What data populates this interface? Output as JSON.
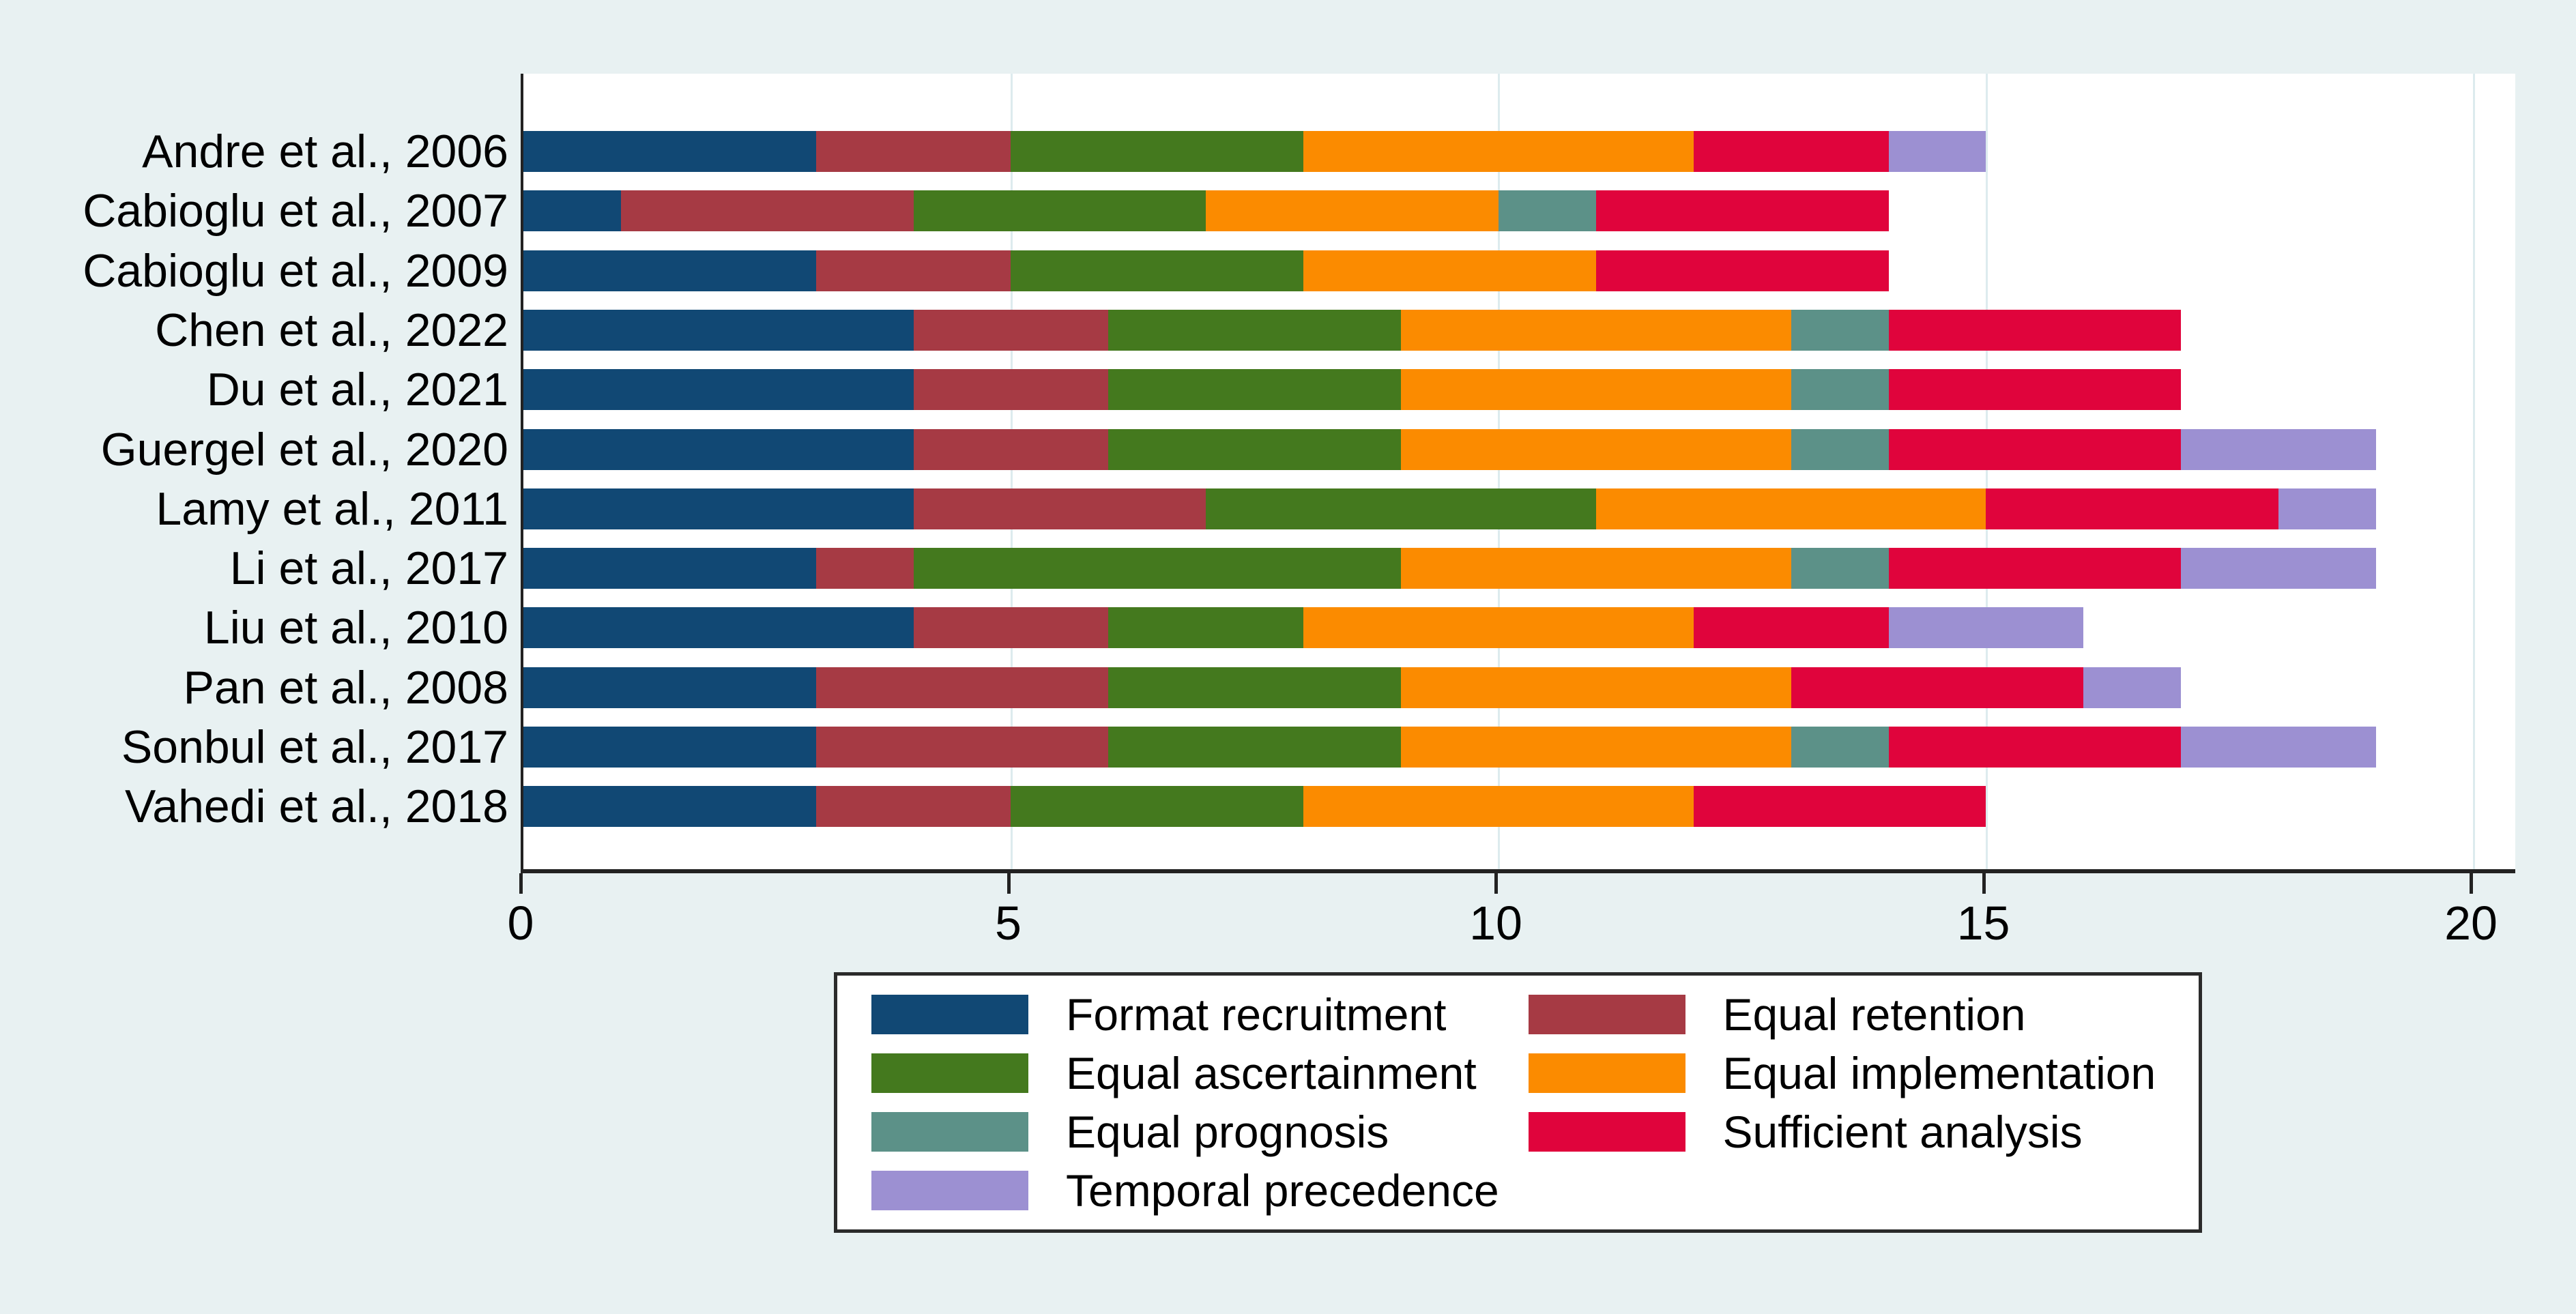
{
  "figure": {
    "background_color": "#E8F1F2",
    "plot_background_color": "#FFFFFF",
    "grid_color": "#DDEBEE",
    "axis_color": "#222222",
    "text_color": "#000000",
    "legend_border_color": "#2B2B2B"
  },
  "chart_data": {
    "type": "bar",
    "variant": "horizontal-stacked",
    "title": "",
    "xlabel": "",
    "ylabel": "",
    "grid": "vertical light gridlines at ticks",
    "legend_position": "bottom, 2 columns, boxed",
    "xlim": [
      0,
      20.4
    ],
    "x_ticks": [
      {
        "value": 0,
        "label": "0"
      },
      {
        "value": 5,
        "label": "5"
      },
      {
        "value": 10,
        "label": "10"
      },
      {
        "value": 15,
        "label": "15"
      },
      {
        "value": 20,
        "label": "20"
      }
    ],
    "categories": [
      "Andre et al., 2006",
      "Cabioglu et al., 2007",
      "Cabioglu et al., 2009",
      "Chen et al., 2022",
      "Du et al., 2021",
      "Guergel et al., 2020",
      "Lamy et al., 2011",
      "Li et al., 2017",
      "Liu et al., 2010",
      "Pan et al., 2008",
      "Sonbul et al., 2017",
      "Vahedi et al., 2018"
    ],
    "series": [
      {
        "name": "Format recruitment",
        "color": "#114874",
        "values": [
          3,
          1,
          3,
          4,
          4,
          4,
          4,
          3,
          4,
          3,
          3,
          3
        ]
      },
      {
        "name": "Equal retention",
        "color": "#A63A44",
        "values": [
          2,
          3,
          2,
          2,
          2,
          2,
          3,
          1,
          2,
          3,
          3,
          2
        ]
      },
      {
        "name": "Equal ascertainment",
        "color": "#44791E",
        "values": [
          3,
          3,
          3,
          3,
          3,
          3,
          4,
          5,
          2,
          3,
          3,
          3
        ]
      },
      {
        "name": "Equal implementation",
        "color": "#FB8B00",
        "values": [
          4,
          3,
          3,
          4,
          4,
          4,
          4,
          4,
          4,
          4,
          4,
          4
        ]
      },
      {
        "name": "Equal prognosis",
        "color": "#5C9188",
        "values": [
          0,
          1,
          0,
          1,
          1,
          1,
          0,
          1,
          0,
          0,
          1,
          0
        ]
      },
      {
        "name": "Sufficient analysis",
        "color": "#E0043C",
        "values": [
          2,
          3,
          3,
          3,
          3,
          3,
          3,
          3,
          2,
          3,
          3,
          3
        ]
      },
      {
        "name": "Temporal precedence",
        "color": "#9C90D2",
        "values": [
          1,
          0,
          0,
          0,
          0,
          2,
          1,
          2,
          2,
          1,
          2,
          0
        ]
      }
    ],
    "bar_totals": [
      15,
      14,
      14,
      17,
      17,
      19,
      19,
      19,
      16,
      17,
      19,
      15
    ]
  },
  "legend": {
    "items": [
      "Format recruitment",
      "Equal retention",
      "Equal ascertainment",
      "Equal implementation",
      "Equal prognosis",
      "Sufficient analysis",
      "Temporal precedence"
    ]
  }
}
